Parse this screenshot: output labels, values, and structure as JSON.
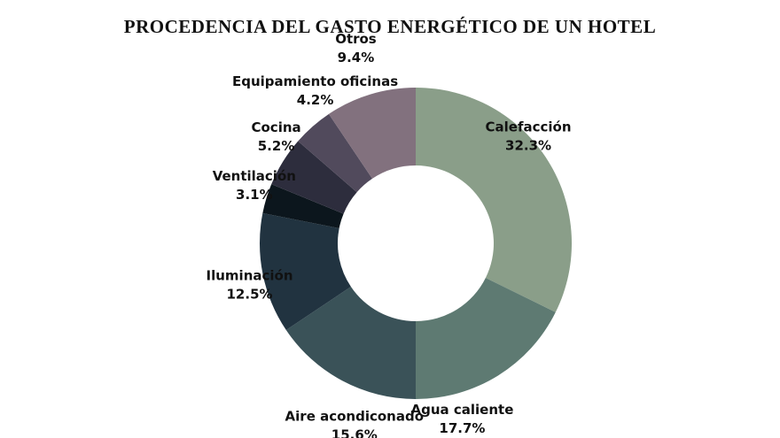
{
  "chart_data": {
    "type": "pie",
    "variant": "donut",
    "title": "PROCEDENCIA DEL GASTO ENERGÉTICO DE UN HOTEL",
    "unit": "%",
    "start_angle_deg": 0,
    "direction": "clockwise",
    "slices": [
      {
        "name": "Calefacción",
        "value": 32.3,
        "value_label": "32.3%",
        "color": "#8a9e89"
      },
      {
        "name": "Agua caliente",
        "value": 17.7,
        "value_label": "17.7%",
        "color": "#5e7a72"
      },
      {
        "name": "Aire acondiconado",
        "value": 15.6,
        "value_label": "15.6%",
        "color": "#3a5258"
      },
      {
        "name": "Iluminación",
        "value": 12.5,
        "value_label": "12.5%",
        "color": "#213340"
      },
      {
        "name": "Ventilación",
        "value": 3.1,
        "value_label": "3.1%",
        "color": "#0c161d"
      },
      {
        "name": "Cocina",
        "value": 5.2,
        "value_label": "5.2%",
        "color": "#2d2d3d"
      },
      {
        "name": "Equipamiento oficinas",
        "value": 4.2,
        "value_label": "4.2%",
        "color": "#514a5c"
      },
      {
        "name": "Otros",
        "value": 9.4,
        "value_label": "9.4%",
        "color": "#82717e"
      }
    ]
  }
}
